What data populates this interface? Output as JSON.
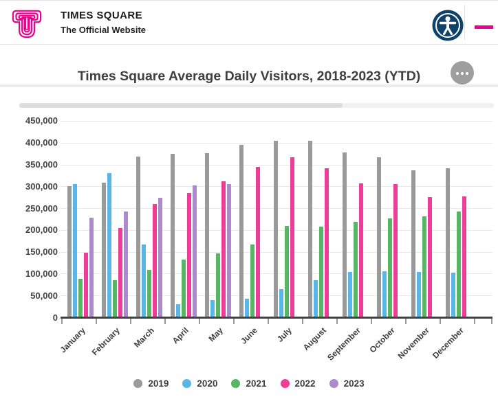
{
  "header": {
    "brand_title": "TIMES SQUARE",
    "brand_subtitle": "The Official Website",
    "brand_color": "#ec008c",
    "accessibility_icon_color": "#0e4268",
    "menu_icon_color": "#ec008c"
  },
  "icons": {
    "logo": "times-square-concentric-t-logo-icon",
    "accessibility": "accessibility-person-circle-icon",
    "menu": "hamburger-menu-icon",
    "context": "ellipsis-more-options-icon"
  },
  "chart_data": {
    "type": "bar",
    "title": "Times Square Average Daily Visitors, 2018-2023 (YTD)",
    "xlabel": "",
    "ylabel": "",
    "categories": [
      "January",
      "February",
      "March",
      "April",
      "May",
      "June",
      "July",
      "August",
      "September",
      "October",
      "November",
      "December"
    ],
    "series": [
      {
        "name": "2019",
        "color": "#9a9a9a",
        "values": [
          301000,
          309000,
          368000,
          374000,
          376000,
          395000,
          405000,
          405000,
          378000,
          367000,
          337000,
          342000
        ]
      },
      {
        "name": "2020",
        "color": "#58b6e9",
        "values": [
          305000,
          331000,
          167000,
          30000,
          40000,
          43000,
          65000,
          85000,
          104000,
          105000,
          104000,
          102000
        ]
      },
      {
        "name": "2021",
        "color": "#57b566",
        "values": [
          88000,
          85000,
          108000,
          132000,
          147000,
          166000,
          210000,
          208000,
          218000,
          227000,
          231000,
          243000
        ]
      },
      {
        "name": "2022",
        "color": "#ee3d99",
        "values": [
          148000,
          204000,
          259000,
          285000,
          311000,
          344000,
          367000,
          341000,
          307000,
          306000,
          275000,
          277000
        ]
      },
      {
        "name": "2023",
        "color": "#ab8bc9",
        "values": [
          228000,
          243000,
          273000,
          302000,
          306000,
          null,
          null,
          null,
          null,
          null,
          null,
          null
        ]
      }
    ],
    "ylim": [
      0,
      450000
    ],
    "ytick_interval": 50000,
    "ytick_labels": [
      "0",
      "50,000",
      "100,000",
      "150,000",
      "200,000",
      "250,000",
      "300,000",
      "350,000",
      "400,000",
      "450,000"
    ],
    "grid": true,
    "legend_position": "bottom"
  }
}
